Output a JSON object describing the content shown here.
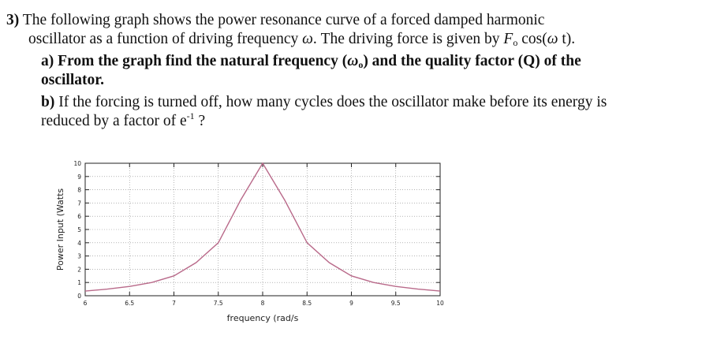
{
  "question": {
    "number": "3)",
    "intro_1": "The following graph shows the power resonance curve of a forced damped harmonic",
    "intro_2a": "oscillator as a function of driving frequency ",
    "omega": "ω",
    "intro_2b": ". The driving force is given by ",
    "F": "F",
    "sub_o": "o",
    "cos_open": " cos(",
    "t_close": " t).",
    "part_a_label": "a)",
    "part_a_1a": " From the graph find the natural frequency (",
    "part_a_1b": ") and the quality factor (Q) of the",
    "part_a_2": "oscillator.",
    "part_b_label": "b)",
    "part_b_1": " If the forcing is turned off, how many cycles does the oscillator make before its energy is",
    "part_b_2": "reduced by a factor of  e",
    "exp": "-1",
    "part_b_end": " ?"
  },
  "chart_data": {
    "type": "line",
    "title": "",
    "xlabel": "frequency (rad/s",
    "ylabel": "Power Input (Watts",
    "xlim": [
      6,
      10
    ],
    "ylim": [
      0,
      10
    ],
    "x_ticks": [
      "6",
      "6.5",
      "7",
      "7.5",
      "8",
      "8.5",
      "9",
      "9.5",
      "10"
    ],
    "y_ticks": [
      "0",
      "1",
      "2",
      "3",
      "4",
      "5",
      "6",
      "7",
      "8",
      "9",
      "10"
    ],
    "grid": true,
    "line_color": "#b96a8a",
    "series": [
      {
        "x": [
          6.0,
          6.25,
          6.5,
          6.75,
          7.0,
          7.25,
          7.5,
          7.75,
          8.0,
          8.25,
          8.5,
          8.75,
          9.0,
          9.25,
          9.5,
          9.75,
          10.0
        ],
        "y": [
          0.35,
          0.5,
          0.7,
          1.0,
          1.5,
          2.5,
          4.0,
          7.2,
          10.0,
          7.2,
          4.0,
          2.5,
          1.5,
          1.0,
          0.7,
          0.5,
          0.35
        ]
      }
    ]
  }
}
